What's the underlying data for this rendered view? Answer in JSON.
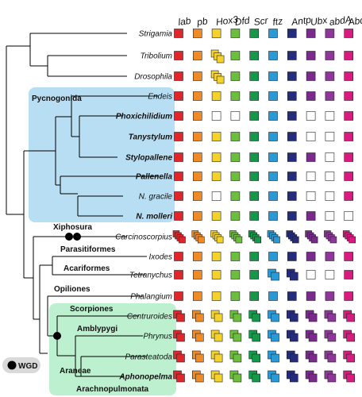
{
  "genes": [
    "lab",
    "pb",
    "Hox3",
    "Dfd",
    "Scr",
    "ftz",
    "Antp",
    "Ubx",
    "abdA",
    "AbdB"
  ],
  "colors": {
    "lab": "#e0262b",
    "pb": "#f08a24",
    "Hox3": "#f4d22a",
    "Dfd": "#6bbf3d",
    "Scr": "#16984a",
    "ftz": "#2a9ad6",
    "Antp": "#252c7c",
    "Ubx": "#7a2a8c",
    "abdA": "#8e3699",
    "AbdB": "#d91b7f",
    "absent": "#ffffff",
    "pycnogonida_bg": "#b7def2",
    "arachnopulmonata_bg": "#bdf0cf",
    "wgd": "#000000"
  },
  "clades": {
    "pycnogonida": "Pycnogonida",
    "xiphosura": "Xiphosura",
    "parasitiformes": "Parasitiformes",
    "acariformes": "Acariformes",
    "opiliones": "Opiliones",
    "scorpiones": "Scorpiones",
    "amblypygi": "Amblypygi",
    "araneae": "Araneae",
    "arachnopulmonata": "Arachnopulmonata"
  },
  "legend": {
    "wgd_label": "WGD"
  },
  "taxa": [
    {
      "name": "Strigamia",
      "bold": false,
      "cells": [
        1,
        1,
        1,
        1,
        1,
        1,
        1,
        1,
        1,
        1
      ]
    },
    {
      "name": "Tribolium",
      "bold": false,
      "cells": [
        1,
        1,
        3,
        1,
        1,
        1,
        1,
        1,
        1,
        1
      ]
    },
    {
      "name": "Drosophila",
      "bold": false,
      "cells": [
        1,
        1,
        3,
        1,
        1,
        1,
        1,
        1,
        1,
        1
      ]
    },
    {
      "name": "Endeis",
      "bold": false,
      "cells": [
        1,
        1,
        1,
        1,
        1,
        1,
        1,
        1,
        1,
        1
      ]
    },
    {
      "name": "Phoxichilidium",
      "bold": true,
      "cells": [
        1,
        1,
        0,
        0,
        1,
        1,
        1,
        0,
        0,
        1
      ]
    },
    {
      "name": "Tanystylum",
      "bold": true,
      "cells": [
        1,
        1,
        1,
        1,
        1,
        1,
        1,
        0,
        0,
        1
      ]
    },
    {
      "name": "Stylopallene",
      "bold": true,
      "cells": [
        1,
        1,
        1,
        1,
        1,
        1,
        1,
        1,
        0,
        1
      ]
    },
    {
      "name": "Pallenella",
      "bold": true,
      "cells": [
        1,
        1,
        1,
        1,
        1,
        1,
        1,
        0,
        0,
        1
      ]
    },
    {
      "name": "N. gracile",
      "bold": false,
      "cells": [
        1,
        1,
        0,
        1,
        1,
        1,
        1,
        0,
        0,
        1
      ]
    },
    {
      "name": "N. molleri",
      "bold": true,
      "cells": [
        1,
        1,
        1,
        1,
        1,
        1,
        1,
        1,
        0,
        0
      ]
    },
    {
      "name": "Carcinoscorpius",
      "bold": false,
      "cells": [
        4,
        4,
        4,
        4,
        4,
        4,
        4,
        4,
        4,
        4
      ]
    },
    {
      "name": "Ixodes",
      "bold": false,
      "cells": [
        1,
        1,
        1,
        1,
        1,
        1,
        1,
        1,
        1,
        1
      ]
    },
    {
      "name": "Tetranychus",
      "bold": false,
      "cells": [
        1,
        1,
        1,
        1,
        1,
        2,
        2,
        0,
        0,
        1
      ]
    },
    {
      "name": "Phalangium",
      "bold": false,
      "cells": [
        1,
        1,
        1,
        1,
        1,
        1,
        1,
        1,
        1,
        1
      ]
    },
    {
      "name": "Centruroides",
      "bold": false,
      "cells": [
        2,
        2,
        2,
        2,
        2,
        2,
        2,
        2,
        2,
        2
      ]
    },
    {
      "name": "Phrynus",
      "bold": false,
      "cells": [
        2,
        2,
        2,
        2,
        2,
        2,
        2,
        2,
        2,
        2
      ]
    },
    {
      "name": "Parasteatoda",
      "bold": false,
      "cells": [
        2,
        2,
        2,
        2,
        2,
        2,
        2,
        2,
        2,
        2
      ]
    },
    {
      "name": "Aphonopelma",
      "bold": true,
      "cells": [
        2,
        2,
        2,
        2,
        2,
        2,
        2,
        2,
        2,
        2
      ]
    }
  ]
}
